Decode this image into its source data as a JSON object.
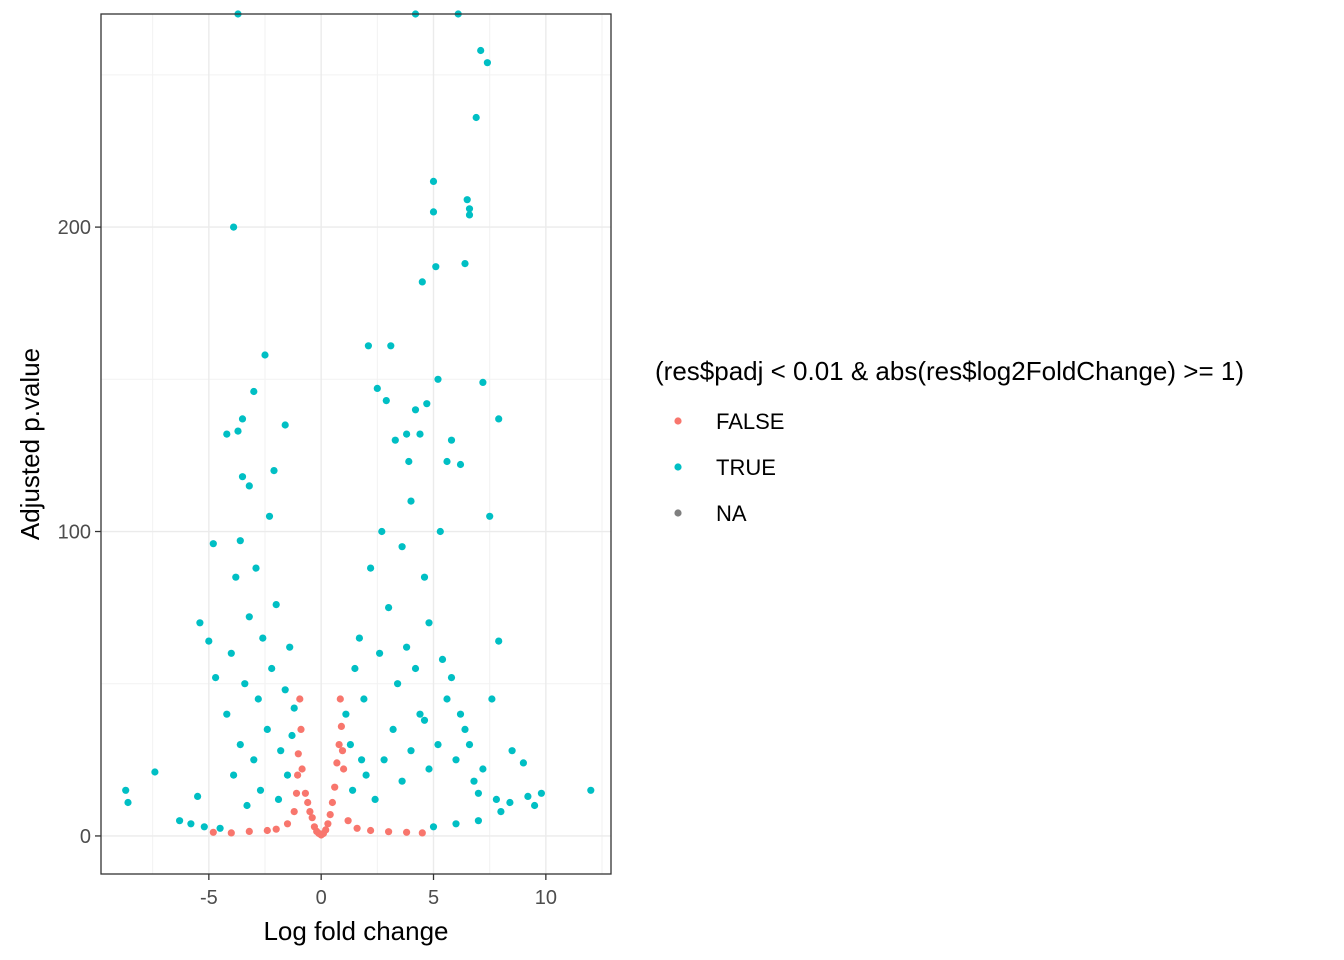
{
  "chart_data": {
    "type": "scatter",
    "xlabel": "Log fold change",
    "ylabel": "Adjusted p.value",
    "xlim": [
      -9.8,
      12.9
    ],
    "ylim": [
      -12.5,
      270
    ],
    "x_ticks": [
      {
        "value": -5,
        "label": "-5"
      },
      {
        "value": 0,
        "label": "0"
      },
      {
        "value": 5,
        "label": "5"
      },
      {
        "value": 10,
        "label": "10"
      }
    ],
    "y_ticks": [
      {
        "value": 0,
        "label": "0"
      },
      {
        "value": 100,
        "label": "100"
      },
      {
        "value": 200,
        "label": "200"
      }
    ],
    "grid": true,
    "legend": {
      "title": "(res$padj < 0.01 & abs(res$log2FoldChange) >= 1)",
      "position": "right",
      "entries": [
        {
          "label": "FALSE",
          "color": "#F8766D"
        },
        {
          "label": "TRUE",
          "color": "#00BFC4"
        },
        {
          "label": "NA",
          "color": "#7F7F7F"
        }
      ]
    },
    "series": [
      {
        "name": "FALSE",
        "color": "#F8766D",
        "points": [
          [
            -4.8,
            1.2
          ],
          [
            -4.0,
            1.0
          ],
          [
            -3.2,
            1.5
          ],
          [
            -2.4,
            1.8
          ],
          [
            -2.0,
            2.2
          ],
          [
            -1.5,
            4
          ],
          [
            -1.2,
            8
          ],
          [
            -1.1,
            14
          ],
          [
            -1.05,
            20
          ],
          [
            -1.02,
            27
          ],
          [
            -0.95,
            45
          ],
          [
            -0.9,
            35
          ],
          [
            -0.85,
            22
          ],
          [
            -0.7,
            14
          ],
          [
            -0.6,
            11
          ],
          [
            -0.5,
            8
          ],
          [
            -0.4,
            6
          ],
          [
            -0.3,
            3
          ],
          [
            -0.2,
            1.5
          ],
          [
            -0.1,
            0.8
          ],
          [
            0.0,
            0.3
          ],
          [
            0.1,
            0.8
          ],
          [
            0.2,
            2
          ],
          [
            0.3,
            4
          ],
          [
            0.4,
            7
          ],
          [
            0.5,
            11
          ],
          [
            0.6,
            16
          ],
          [
            0.7,
            24
          ],
          [
            0.8,
            30
          ],
          [
            0.85,
            45
          ],
          [
            0.9,
            36
          ],
          [
            0.95,
            28
          ],
          [
            1.0,
            22
          ],
          [
            1.2,
            5
          ],
          [
            1.6,
            2.5
          ],
          [
            2.2,
            1.8
          ],
          [
            3.0,
            1.4
          ],
          [
            3.8,
            1.2
          ],
          [
            4.5,
            1.0
          ]
        ]
      },
      {
        "name": "TRUE",
        "color": "#00BFC4",
        "points": [
          [
            -8.7,
            15
          ],
          [
            -8.6,
            11
          ],
          [
            -7.4,
            21
          ],
          [
            -6.3,
            5
          ],
          [
            -5.5,
            13
          ],
          [
            -5.4,
            70
          ],
          [
            -5.0,
            64
          ],
          [
            -4.8,
            96
          ],
          [
            -4.7,
            52
          ],
          [
            -4.2,
            132
          ],
          [
            -3.9,
            200
          ],
          [
            -3.7,
            133
          ],
          [
            -3.5,
            137
          ],
          [
            -3.5,
            118
          ],
          [
            -3.2,
            115
          ],
          [
            -3.0,
            146
          ],
          [
            -2.5,
            158
          ],
          [
            -2.3,
            105
          ],
          [
            -2.1,
            120
          ],
          [
            -1.6,
            135
          ],
          [
            -4.2,
            40
          ],
          [
            -4.0,
            60
          ],
          [
            -3.8,
            85
          ],
          [
            -3.6,
            30
          ],
          [
            -3.4,
            50
          ],
          [
            -3.2,
            72
          ],
          [
            -3.0,
            25
          ],
          [
            -2.8,
            45
          ],
          [
            -2.6,
            65
          ],
          [
            -2.4,
            35
          ],
          [
            -2.2,
            55
          ],
          [
            -2.0,
            76
          ],
          [
            -1.8,
            28
          ],
          [
            -1.6,
            48
          ],
          [
            -1.4,
            62
          ],
          [
            -1.3,
            33
          ],
          [
            -1.2,
            42
          ],
          [
            -3.9,
            20
          ],
          [
            -2.7,
            15
          ],
          [
            -1.9,
            12
          ],
          [
            -1.5,
            20
          ],
          [
            -3.3,
            10
          ],
          [
            -5.8,
            4
          ],
          [
            -5.2,
            3
          ],
          [
            -4.5,
            2.5
          ],
          [
            -3.6,
            97
          ],
          [
            -2.9,
            88
          ],
          [
            1.1,
            40
          ],
          [
            1.3,
            30
          ],
          [
            1.5,
            55
          ],
          [
            1.7,
            65
          ],
          [
            1.9,
            45
          ],
          [
            2.1,
            161
          ],
          [
            2.2,
            88
          ],
          [
            2.5,
            147
          ],
          [
            2.7,
            100
          ],
          [
            2.9,
            143
          ],
          [
            3.1,
            161
          ],
          [
            3.3,
            130
          ],
          [
            3.6,
            95
          ],
          [
            3.8,
            132
          ],
          [
            3.9,
            123
          ],
          [
            4.0,
            110
          ],
          [
            4.2,
            140
          ],
          [
            4.4,
            132
          ],
          [
            4.5,
            182
          ],
          [
            4.6,
            85
          ],
          [
            4.7,
            142
          ],
          [
            4.8,
            70
          ],
          [
            5.0,
            215
          ],
          [
            5.0,
            205
          ],
          [
            5.1,
            187
          ],
          [
            5.2,
            150
          ],
          [
            5.3,
            100
          ],
          [
            5.6,
            123
          ],
          [
            5.8,
            130
          ],
          [
            6.2,
            122
          ],
          [
            6.4,
            188
          ],
          [
            6.5,
            209
          ],
          [
            6.6,
            206
          ],
          [
            6.6,
            204
          ],
          [
            6.9,
            236
          ],
          [
            7.1,
            258
          ],
          [
            7.2,
            149
          ],
          [
            7.4,
            254
          ],
          [
            7.5,
            105
          ],
          [
            7.9,
            137
          ],
          [
            7.9,
            64
          ],
          [
            7.6,
            45
          ],
          [
            8.5,
            28
          ],
          [
            9.0,
            24
          ],
          [
            9.5,
            10
          ],
          [
            9.8,
            14
          ],
          [
            8.0,
            8
          ],
          [
            7.0,
            5
          ],
          [
            6.0,
            4
          ],
          [
            5.0,
            3
          ],
          [
            -3.7,
            270
          ],
          [
            4.2,
            270
          ],
          [
            6.1,
            270
          ],
          [
            12.0,
            15
          ],
          [
            2.0,
            20
          ],
          [
            2.4,
            12
          ],
          [
            2.8,
            25
          ],
          [
            3.2,
            35
          ],
          [
            3.6,
            18
          ],
          [
            4.0,
            28
          ],
          [
            4.4,
            40
          ],
          [
            4.8,
            22
          ],
          [
            5.2,
            30
          ],
          [
            5.6,
            45
          ],
          [
            6.0,
            25
          ],
          [
            6.4,
            35
          ],
          [
            6.8,
            18
          ],
          [
            7.2,
            22
          ],
          [
            1.4,
            15
          ],
          [
            1.8,
            25
          ],
          [
            2.6,
            60
          ],
          [
            3.0,
            75
          ],
          [
            3.4,
            50
          ],
          [
            3.8,
            62
          ],
          [
            4.2,
            55
          ],
          [
            4.6,
            38
          ],
          [
            5.4,
            58
          ],
          [
            5.8,
            52
          ],
          [
            6.2,
            40
          ],
          [
            6.6,
            30
          ],
          [
            7.0,
            14
          ],
          [
            7.8,
            12
          ],
          [
            8.4,
            11
          ],
          [
            9.2,
            13
          ]
        ]
      }
    ]
  }
}
